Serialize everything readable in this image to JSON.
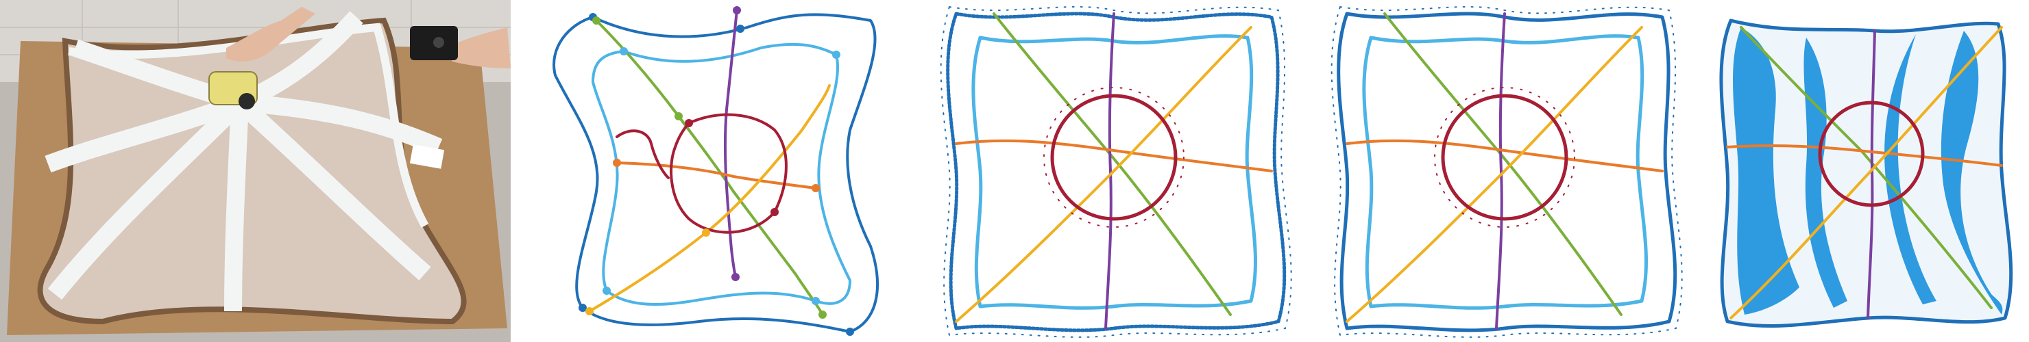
{
  "figure": {
    "panels": [
      {
        "id": "photo",
        "kind": "photograph"
      },
      {
        "id": "curves",
        "kind": "sampled-curves"
      },
      {
        "id": "normals-1",
        "kind": "curves-with-normals"
      },
      {
        "id": "normals-2",
        "kind": "curves-with-normals"
      },
      {
        "id": "surface",
        "kind": "reconstructed-surface"
      }
    ],
    "colors": {
      "outer_blue": "#1f6fb8",
      "light_blue": "#4cb4e6",
      "green": "#7ab03a",
      "purple": "#7b3fa0",
      "orange": "#e97a2a",
      "yellow": "#f0b020",
      "crimson": "#a61e35",
      "surface_blue": "#2e9ae0",
      "tape_white": "#f4f6f6",
      "board_brown": "#a9825a",
      "membrane": "#d6c7ba"
    },
    "icons": [
      "hand-icon",
      "measuring-wheel-icon",
      "remote-control-icon"
    ]
  }
}
